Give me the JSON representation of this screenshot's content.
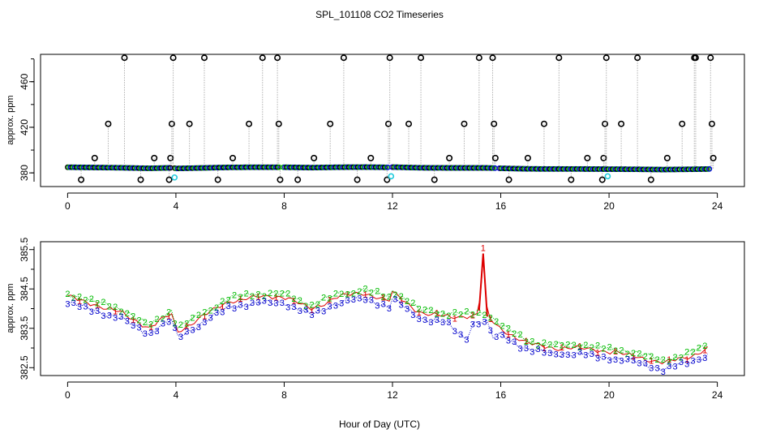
{
  "chart_data": [
    {
      "type": "scatter",
      "title": "SPL_101108  CO2 Timeseries",
      "xlabel": "",
      "ylabel": "approx. ppm",
      "xlim": [
        -1,
        25
      ],
      "ylim": [
        368,
        484
      ],
      "xticks": [
        0,
        4,
        8,
        12,
        16,
        20,
        24
      ],
      "xtick_labels": [
        "0",
        "4",
        "8",
        "12",
        "16",
        "20",
        "24"
      ],
      "yticks": [
        380,
        420,
        460
      ],
      "ytick_labels": [
        "380",
        "420",
        "460"
      ],
      "secondary_ticks": [
        360,
        380,
        400,
        420,
        440,
        460,
        480
      ],
      "baseline": {
        "x": [
          0.0,
          1.0,
          2.0,
          3.0,
          3.9,
          4.0,
          5.0,
          6.0,
          7.0,
          8.0,
          9.0,
          10.0,
          11.0,
          11.9,
          12.0,
          13.0,
          14.0,
          15.0,
          15.5,
          16.0,
          17.0,
          18.0,
          19.0,
          20.0,
          21.0,
          22.0,
          23.0,
          23.7
        ],
        "y": [
          384.3,
          384.1,
          383.9,
          383.5,
          383.9,
          383.4,
          383.8,
          384.2,
          384.3,
          384.3,
          384.0,
          384.3,
          384.4,
          384.2,
          384.4,
          383.9,
          383.8,
          383.8,
          383.8,
          383.5,
          383.1,
          383.0,
          383.0,
          382.9,
          382.8,
          382.6,
          382.8,
          383.0
        ]
      },
      "spikes": {
        "x": [
          0.5,
          1.0,
          1.5,
          2.1,
          2.7,
          3.2,
          3.75,
          3.8,
          3.85,
          3.9,
          4.5,
          5.05,
          5.55,
          6.1,
          6.7,
          7.2,
          7.75,
          7.8,
          7.85,
          8.5,
          9.1,
          9.7,
          10.2,
          10.7,
          11.2,
          11.8,
          11.85,
          11.9,
          12.6,
          13.05,
          13.55,
          14.1,
          14.65,
          15.2,
          15.7,
          15.75,
          15.8,
          16.3,
          17.0,
          17.6,
          18.15,
          18.6,
          19.2,
          19.75,
          19.8,
          19.85,
          19.9,
          20.45,
          21.05,
          21.55,
          22.15,
          22.7,
          23.15,
          23.2,
          23.75,
          23.8,
          23.85
        ],
        "y": [
          374,
          393,
          423,
          481,
          374,
          393,
          374,
          393,
          423,
          481,
          423,
          481,
          374,
          393,
          423,
          481,
          481,
          423,
          374,
          374,
          393,
          423,
          481,
          374,
          393,
          374,
          423,
          481,
          423,
          481,
          374,
          393,
          423,
          481,
          481,
          423,
          393,
          374,
          393,
          423,
          481,
          374,
          393,
          374,
          393,
          423,
          481,
          423,
          481,
          374,
          393,
          423,
          481,
          481,
          481,
          423,
          393
        ]
      },
      "cyan_points": {
        "x": [
          3.95,
          11.95,
          19.95
        ],
        "y": [
          376,
          377,
          377
        ]
      }
    },
    {
      "type": "line",
      "title": "",
      "xlabel": "Hour of Day (UTC)",
      "ylabel": "approx. ppm",
      "xlim": [
        -1,
        25
      ],
      "ylim": [
        382.3,
        385.7
      ],
      "xticks": [
        0,
        4,
        8,
        12,
        16,
        20,
        24
      ],
      "xtick_labels": [
        "0",
        "4",
        "8",
        "12",
        "16",
        "20",
        "24"
      ],
      "yticks": [
        382.5,
        383.5,
        384.5,
        385.5
      ],
      "ytick_labels": [
        "382.5",
        "383.5",
        "384.5",
        "385.5"
      ],
      "secondary_ticks": [
        383.0,
        384.0,
        385.0
      ],
      "series": [
        {
          "name": "1",
          "color": "#dd0000",
          "y_offset": 0.0,
          "x": [
            0.0,
            1.0,
            2.0,
            3.0,
            3.9,
            4.0,
            5.0,
            6.0,
            7.0,
            8.0,
            9.0,
            10.0,
            11.0,
            11.9,
            12.0,
            13.0,
            14.0,
            15.0,
            15.2,
            15.35,
            15.5,
            16.0,
            17.0,
            18.0,
            19.0,
            20.0,
            21.0,
            22.0,
            23.0,
            23.7
          ],
          "y": [
            384.3,
            384.1,
            383.9,
            383.5,
            383.9,
            383.4,
            383.8,
            384.2,
            384.3,
            384.3,
            384.0,
            384.3,
            384.4,
            384.2,
            384.4,
            383.9,
            383.8,
            383.8,
            383.9,
            385.4,
            383.8,
            383.5,
            383.1,
            383.0,
            383.0,
            382.9,
            382.8,
            382.6,
            382.8,
            383.0
          ]
        },
        {
          "name": "2",
          "color": "#00bb00",
          "y_offset": 0.08,
          "x": [
            0.0,
            1.0,
            2.0,
            3.0,
            3.9,
            4.0,
            5.0,
            6.0,
            7.0,
            8.0,
            9.0,
            10.0,
            11.0,
            11.9,
            12.0,
            13.0,
            14.0,
            15.0,
            15.5,
            16.0,
            17.0,
            18.0,
            19.0,
            20.0,
            21.0,
            22.0,
            23.0,
            23.7
          ],
          "y": [
            384.3,
            384.1,
            383.9,
            383.5,
            383.9,
            383.4,
            383.8,
            384.2,
            384.3,
            384.3,
            384.0,
            384.3,
            384.4,
            384.2,
            384.4,
            383.9,
            383.8,
            383.8,
            383.8,
            383.5,
            383.1,
            383.0,
            383.0,
            382.9,
            382.8,
            382.6,
            382.8,
            383.0
          ]
        },
        {
          "name": "3",
          "color": "#0000cc",
          "y_offset": -0.15,
          "x": [
            0.0,
            1.0,
            2.0,
            3.0,
            3.9,
            4.0,
            5.0,
            6.0,
            7.0,
            8.0,
            9.0,
            10.0,
            11.0,
            11.9,
            12.0,
            13.0,
            14.0,
            14.7,
            15.0,
            15.5,
            15.7,
            16.0,
            17.0,
            18.0,
            19.0,
            20.0,
            21.0,
            22.0,
            23.0,
            23.7
          ],
          "y": [
            384.3,
            384.1,
            383.9,
            383.5,
            383.9,
            383.4,
            383.8,
            384.2,
            384.3,
            384.3,
            384.0,
            384.3,
            384.4,
            384.2,
            384.4,
            383.9,
            383.8,
            383.35,
            383.8,
            383.8,
            383.4,
            383.5,
            383.1,
            383.0,
            383.0,
            382.9,
            382.8,
            382.6,
            382.8,
            383.0
          ]
        }
      ]
    }
  ]
}
